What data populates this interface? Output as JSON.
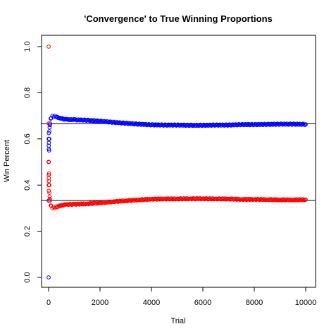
{
  "chart_data": {
    "type": "scatter",
    "title": "'Convergence' to True Winning Proportions",
    "xlabel": "Trial",
    "ylabel": "Win Percent",
    "xlim": [
      0,
      10000
    ],
    "ylim": [
      0,
      1
    ],
    "xticks": [
      0,
      2000,
      4000,
      6000,
      8000,
      10000
    ],
    "yticks": [
      0.0,
      0.2,
      0.4,
      0.6,
      0.8,
      1.0
    ],
    "ytick_labels": [
      "0.0",
      "0.2",
      "0.4",
      "0.6",
      "0.8",
      "1.0"
    ],
    "reference_lines": [
      0.6667,
      0.3333
    ],
    "grid": false,
    "series": [
      {
        "color": "#0000ff",
        "marker": "open-circle",
        "points": [
          [
            1,
            0.0
          ],
          [
            2,
            0.5
          ],
          [
            3,
            0.333
          ],
          [
            4,
            0.5
          ],
          [
            5,
            0.6
          ],
          [
            6,
            0.5
          ],
          [
            7,
            0.571
          ],
          [
            8,
            0.625
          ],
          [
            9,
            0.556
          ],
          [
            10,
            0.6
          ],
          [
            12,
            0.583
          ],
          [
            15,
            0.6
          ],
          [
            20,
            0.55
          ],
          [
            25,
            0.6
          ],
          [
            30,
            0.633
          ],
          [
            40,
            0.65
          ],
          [
            50,
            0.66
          ],
          [
            60,
            0.667
          ],
          [
            80,
            0.688
          ],
          [
            100,
            0.69
          ],
          [
            150,
            0.7
          ],
          [
            200,
            0.695
          ],
          [
            250,
            0.7
          ],
          [
            300,
            0.695
          ],
          [
            400,
            0.69
          ],
          [
            500,
            0.688
          ],
          [
            700,
            0.684
          ],
          [
            1000,
            0.683
          ],
          [
            1500,
            0.681
          ],
          [
            2000,
            0.677
          ],
          [
            2500,
            0.672
          ],
          [
            3000,
            0.668
          ],
          [
            3500,
            0.664
          ],
          [
            4000,
            0.661
          ],
          [
            4500,
            0.66
          ],
          [
            5000,
            0.66
          ],
          [
            5500,
            0.659
          ],
          [
            6000,
            0.659
          ],
          [
            6500,
            0.66
          ],
          [
            7000,
            0.66
          ],
          [
            7500,
            0.662
          ],
          [
            8000,
            0.662
          ],
          [
            8500,
            0.663
          ],
          [
            9000,
            0.664
          ],
          [
            9500,
            0.664
          ],
          [
            10000,
            0.663
          ]
        ]
      },
      {
        "color": "#ff0000",
        "marker": "open-circle",
        "points": [
          [
            1,
            1.0
          ],
          [
            2,
            0.5
          ],
          [
            3,
            0.667
          ],
          [
            4,
            0.5
          ],
          [
            5,
            0.4
          ],
          [
            6,
            0.5
          ],
          [
            7,
            0.429
          ],
          [
            8,
            0.375
          ],
          [
            9,
            0.444
          ],
          [
            10,
            0.4
          ],
          [
            12,
            0.417
          ],
          [
            15,
            0.4
          ],
          [
            20,
            0.45
          ],
          [
            25,
            0.4
          ],
          [
            30,
            0.367
          ],
          [
            40,
            0.35
          ],
          [
            50,
            0.34
          ],
          [
            60,
            0.333
          ],
          [
            80,
            0.312
          ],
          [
            100,
            0.31
          ],
          [
            150,
            0.3
          ],
          [
            200,
            0.305
          ],
          [
            250,
            0.3
          ],
          [
            300,
            0.305
          ],
          [
            400,
            0.31
          ],
          [
            500,
            0.312
          ],
          [
            700,
            0.316
          ],
          [
            1000,
            0.317
          ],
          [
            1500,
            0.319
          ],
          [
            2000,
            0.323
          ],
          [
            2500,
            0.328
          ],
          [
            3000,
            0.332
          ],
          [
            3500,
            0.336
          ],
          [
            4000,
            0.339
          ],
          [
            4500,
            0.34
          ],
          [
            5000,
            0.34
          ],
          [
            5500,
            0.341
          ],
          [
            6000,
            0.341
          ],
          [
            6500,
            0.34
          ],
          [
            7000,
            0.34
          ],
          [
            7500,
            0.338
          ],
          [
            8000,
            0.338
          ],
          [
            8500,
            0.337
          ],
          [
            9000,
            0.336
          ],
          [
            9500,
            0.336
          ],
          [
            10000,
            0.337
          ]
        ]
      }
    ]
  }
}
